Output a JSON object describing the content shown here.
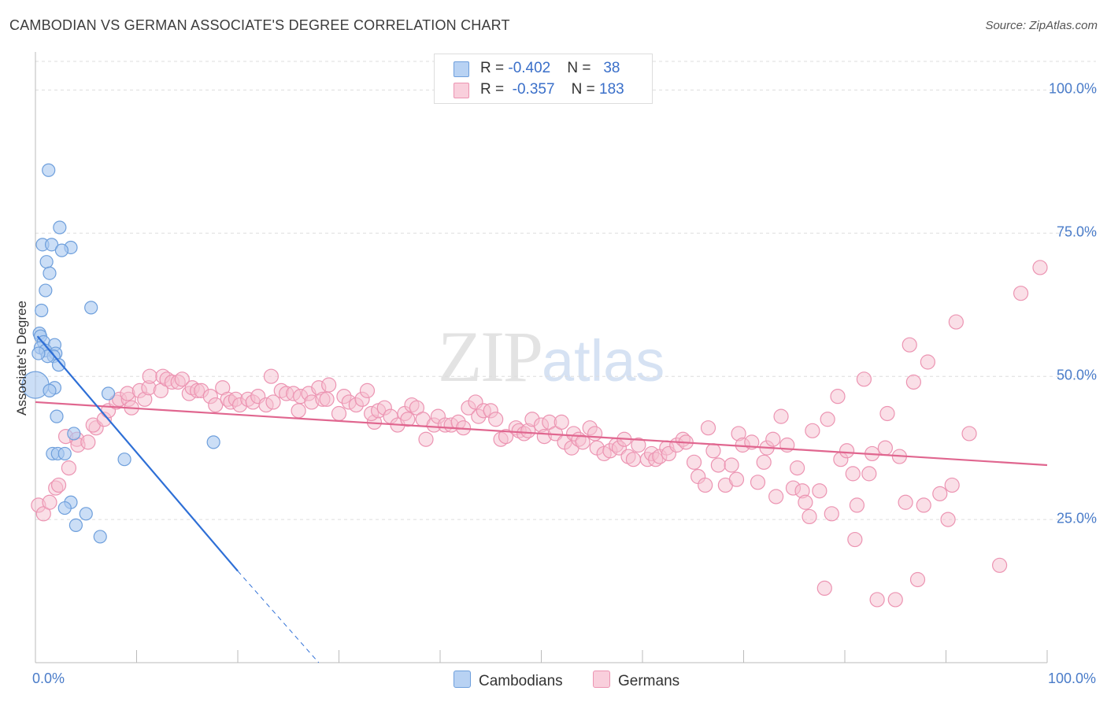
{
  "header": {
    "title": "CAMBODIAN VS GERMAN ASSOCIATE'S DEGREE CORRELATION CHART",
    "source": "Source: ZipAtlas.com"
  },
  "legend": {
    "cambodians": {
      "r_label": "R = ",
      "r_value": "-0.402",
      "n_label": "N = ",
      "n_value": "38"
    },
    "germans": {
      "r_label": "R = ",
      "r_value": "-0.357",
      "n_label": "N = ",
      "n_value": "183"
    }
  },
  "bottom_legend": {
    "cambodians": "Cambodians",
    "germans": "Germans"
  },
  "watermark": {
    "zip": "ZIP",
    "atlas": "atlas"
  },
  "colors": {
    "cambodian_fill": "#a9c8f0",
    "cambodian_stroke": "#6e9fdc",
    "cambodian_line": "#2e6fd6",
    "german_fill": "#f6bfd0",
    "german_stroke": "#ec94b2",
    "german_line": "#e0668f",
    "tick_label": "#4a7cc9",
    "grid": "#dddddd"
  },
  "chart_data": {
    "type": "scatter",
    "title": "CAMBODIAN VS GERMAN ASSOCIATE'S DEGREE CORRELATION CHART",
    "xlabel": "",
    "ylabel": "Associate's Degree",
    "xlim": [
      0,
      100
    ],
    "ylim": [
      0,
      105
    ],
    "y_ticks": [
      {
        "value": 25,
        "label": "25.0%"
      },
      {
        "value": 50,
        "label": "50.0%"
      },
      {
        "value": 75,
        "label": "75.0%"
      },
      {
        "value": 100,
        "label": "100.0%"
      }
    ],
    "x_tick_labels": [
      {
        "value": 0,
        "label": "0.0%"
      },
      {
        "value": 100,
        "label": "100.0%"
      }
    ],
    "grid": true,
    "legend_position": "top-center",
    "series": [
      {
        "name": "Cambodians",
        "r": -0.402,
        "n": 38,
        "trend": {
          "x0": 0.2,
          "y0": 57,
          "x1": 20,
          "y1": 16,
          "dash_to_x": 28,
          "dash_to_y": 0
        },
        "points": [
          [
            1.3,
            86
          ],
          [
            2.4,
            76
          ],
          [
            0.7,
            73
          ],
          [
            1.6,
            73
          ],
          [
            3.5,
            72.5
          ],
          [
            2.6,
            72
          ],
          [
            1.1,
            70
          ],
          [
            1.4,
            68
          ],
          [
            1.0,
            65
          ],
          [
            5.5,
            62
          ],
          [
            0.6,
            61.5
          ],
          [
            0.4,
            57.5
          ],
          [
            0.5,
            57
          ],
          [
            0.8,
            56
          ],
          [
            1.9,
            55.5
          ],
          [
            0.5,
            55
          ],
          [
            1.0,
            54.5
          ],
          [
            2.0,
            54
          ],
          [
            1.8,
            53.5
          ],
          [
            1.2,
            53.5
          ],
          [
            2.3,
            52
          ],
          [
            0,
            48.5
          ],
          [
            1.9,
            48
          ],
          [
            7.2,
            47
          ],
          [
            2.1,
            43
          ],
          [
            3.8,
            40
          ],
          [
            17.6,
            38.5
          ],
          [
            1.7,
            36.5
          ],
          [
            2.2,
            36.5
          ],
          [
            2.9,
            36.5
          ],
          [
            8.8,
            35.5
          ],
          [
            3.5,
            28
          ],
          [
            2.9,
            27
          ],
          [
            5.0,
            26
          ],
          [
            4.0,
            24
          ],
          [
            6.4,
            22
          ],
          [
            0.3,
            54
          ],
          [
            1.4,
            47.5
          ]
        ]
      },
      {
        "name": "Germans",
        "r": -0.357,
        "n": 183,
        "trend": {
          "x0": 0,
          "y0": 45.5,
          "x1": 100,
          "y1": 34.5
        },
        "points": [
          [
            0.3,
            27.5
          ],
          [
            0.8,
            26
          ],
          [
            1.4,
            28
          ],
          [
            2.0,
            30.5
          ],
          [
            2.3,
            31
          ],
          [
            3.3,
            34
          ],
          [
            3.0,
            39.5
          ],
          [
            4.1,
            39
          ],
          [
            4.2,
            38
          ],
          [
            5.2,
            38.5
          ],
          [
            6.0,
            41
          ],
          [
            5.7,
            41.5
          ],
          [
            6.8,
            42.5
          ],
          [
            7.2,
            44
          ],
          [
            8.0,
            45.5
          ],
          [
            8.3,
            46
          ],
          [
            9.2,
            46
          ],
          [
            9.1,
            47
          ],
          [
            9.5,
            44.5
          ],
          [
            10.3,
            47.5
          ],
          [
            10.8,
            46
          ],
          [
            11.2,
            48
          ],
          [
            11.3,
            50
          ],
          [
            12.4,
            47.5
          ],
          [
            12.6,
            50
          ],
          [
            13.0,
            49.5
          ],
          [
            13.5,
            49
          ],
          [
            14.1,
            49
          ],
          [
            14.5,
            49.5
          ],
          [
            15.2,
            47
          ],
          [
            15.5,
            48
          ],
          [
            16.0,
            47.5
          ],
          [
            16.4,
            47.5
          ],
          [
            17.3,
            46.5
          ],
          [
            17.8,
            45
          ],
          [
            18.5,
            48
          ],
          [
            19.0,
            46
          ],
          [
            19.3,
            45.5
          ],
          [
            19.8,
            46
          ],
          [
            20.2,
            45
          ],
          [
            21.0,
            46
          ],
          [
            21.5,
            45.5
          ],
          [
            22.0,
            46.5
          ],
          [
            22.8,
            45
          ],
          [
            23.5,
            45.5
          ],
          [
            23.3,
            50
          ],
          [
            24.3,
            47.5
          ],
          [
            24.8,
            47
          ],
          [
            25.5,
            47
          ],
          [
            26.0,
            44
          ],
          [
            26.2,
            46.5
          ],
          [
            27.0,
            47
          ],
          [
            27.3,
            45.5
          ],
          [
            28.0,
            48
          ],
          [
            28.4,
            46
          ],
          [
            28.8,
            46
          ],
          [
            29.0,
            48.5
          ],
          [
            30.0,
            43.5
          ],
          [
            30.5,
            46.5
          ],
          [
            31.0,
            45.5
          ],
          [
            31.7,
            45
          ],
          [
            32.3,
            46
          ],
          [
            32.8,
            47.5
          ],
          [
            33.5,
            42
          ],
          [
            33.2,
            43.5
          ],
          [
            33.9,
            44
          ],
          [
            34.5,
            44.5
          ],
          [
            35.1,
            43
          ],
          [
            35.8,
            41.5
          ],
          [
            36.5,
            43.5
          ],
          [
            36.8,
            42.5
          ],
          [
            37.2,
            45
          ],
          [
            37.7,
            44.5
          ],
          [
            38.3,
            42.5
          ],
          [
            38.6,
            39
          ],
          [
            39.4,
            41.5
          ],
          [
            39.8,
            43
          ],
          [
            40.5,
            41.5
          ],
          [
            41.1,
            41.5
          ],
          [
            41.8,
            42
          ],
          [
            42.3,
            41
          ],
          [
            42.8,
            44.5
          ],
          [
            43.5,
            45.5
          ],
          [
            43.8,
            43
          ],
          [
            44.3,
            44
          ],
          [
            45.0,
            44
          ],
          [
            45.5,
            42.5
          ],
          [
            46.0,
            39
          ],
          [
            46.5,
            39.5
          ],
          [
            47.5,
            41
          ],
          [
            47.8,
            40.5
          ],
          [
            48.3,
            40
          ],
          [
            48.7,
            40.5
          ],
          [
            49.1,
            42.5
          ],
          [
            50.0,
            41.5
          ],
          [
            50.3,
            39.5
          ],
          [
            50.8,
            42
          ],
          [
            51.4,
            40
          ],
          [
            52.0,
            42
          ],
          [
            52.3,
            38.5
          ],
          [
            53.0,
            37.5
          ],
          [
            53.2,
            40
          ],
          [
            53.7,
            39
          ],
          [
            54.1,
            38.5
          ],
          [
            54.8,
            41
          ],
          [
            55.3,
            40
          ],
          [
            55.5,
            37.5
          ],
          [
            56.2,
            36.5
          ],
          [
            56.8,
            37
          ],
          [
            57.4,
            38
          ],
          [
            57.7,
            37.5
          ],
          [
            58.2,
            39
          ],
          [
            58.6,
            36
          ],
          [
            59.1,
            35.5
          ],
          [
            59.6,
            38
          ],
          [
            60.5,
            35.5
          ],
          [
            60.9,
            36.5
          ],
          [
            61.3,
            35.5
          ],
          [
            61.7,
            36
          ],
          [
            62.4,
            37.5
          ],
          [
            62.6,
            36.5
          ],
          [
            63.4,
            38
          ],
          [
            64.0,
            39
          ],
          [
            64.3,
            38.5
          ],
          [
            65.1,
            35
          ],
          [
            65.5,
            32.5
          ],
          [
            66.2,
            31
          ],
          [
            66.5,
            41
          ],
          [
            67.0,
            37
          ],
          [
            67.5,
            34.5
          ],
          [
            68.2,
            31
          ],
          [
            68.8,
            34.5
          ],
          [
            69.3,
            32
          ],
          [
            69.5,
            40
          ],
          [
            69.9,
            38
          ],
          [
            70.8,
            38.5
          ],
          [
            71.4,
            31.5
          ],
          [
            72.0,
            35
          ],
          [
            72.3,
            37.5
          ],
          [
            72.9,
            39
          ],
          [
            73.2,
            29
          ],
          [
            73.7,
            43
          ],
          [
            74.3,
            38
          ],
          [
            74.9,
            30.5
          ],
          [
            75.3,
            34
          ],
          [
            75.8,
            30
          ],
          [
            76.1,
            28
          ],
          [
            76.5,
            25.5
          ],
          [
            76.8,
            40.5
          ],
          [
            77.5,
            30
          ],
          [
            78.0,
            13
          ],
          [
            78.3,
            42.5
          ],
          [
            78.7,
            26
          ],
          [
            79.3,
            46.5
          ],
          [
            79.6,
            35.5
          ],
          [
            80.2,
            37
          ],
          [
            80.8,
            33
          ],
          [
            81.0,
            21.5
          ],
          [
            81.2,
            27.5
          ],
          [
            81.9,
            49.5
          ],
          [
            82.4,
            33
          ],
          [
            82.7,
            36.5
          ],
          [
            83.2,
            11
          ],
          [
            84.0,
            37.5
          ],
          [
            85.0,
            11
          ],
          [
            85.4,
            36
          ],
          [
            86.0,
            28
          ],
          [
            86.4,
            55.5
          ],
          [
            86.8,
            49
          ],
          [
            87.2,
            14.5
          ],
          [
            87.8,
            27.5
          ],
          [
            88.2,
            52.5
          ],
          [
            89.4,
            29.5
          ],
          [
            90.2,
            25
          ],
          [
            90.6,
            31
          ],
          [
            91.0,
            59.5
          ],
          [
            92.3,
            40
          ],
          [
            95.3,
            17
          ],
          [
            97.4,
            64.5
          ],
          [
            99.3,
            69
          ],
          [
            84.2,
            43.5
          ]
        ]
      }
    ]
  }
}
